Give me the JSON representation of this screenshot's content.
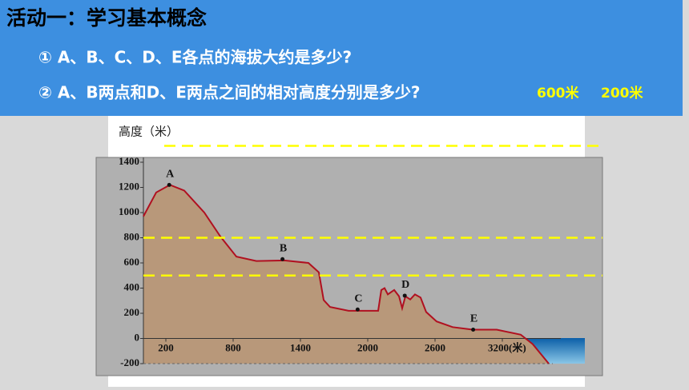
{
  "header": {
    "title": "活动一：学习基本概念",
    "questions": [
      "① A、B、C、D、E各点的海拔大约是多少?",
      "② A、B两点和D、E两点之间的相对高度分别是多少?"
    ],
    "answers": [
      "600米",
      "200米"
    ]
  },
  "chart": {
    "type": "line",
    "y_label": "高度（米）",
    "xlim": [
      0,
      3700
    ],
    "ylim": [
      -200,
      1400
    ],
    "yticks": [
      -200,
      0,
      200,
      400,
      600,
      800,
      1000,
      1200,
      1400
    ],
    "xticks": [
      200,
      800,
      1400,
      2000,
      2600,
      {
        "value": 3200,
        "label": "3200(米)"
      }
    ],
    "profile": {
      "color": "#b01020",
      "fill": "#b8987a",
      "x": [
        0,
        114,
        236,
        364,
        543,
        686,
        829,
        1007,
        1257,
        1471,
        1564,
        1607,
        1664,
        1829,
        2093,
        2121,
        2150,
        2179,
        2236,
        2279,
        2307,
        2336,
        2379,
        2421,
        2471,
        2521,
        2614,
        2757,
        2936,
        3150,
        3364,
        3471,
        3614
      ],
      "y": [
        970,
        1160,
        1220,
        1175,
        1000,
        810,
        650,
        615,
        620,
        600,
        525,
        305,
        250,
        220,
        220,
        385,
        400,
        350,
        385,
        335,
        240,
        335,
        310,
        350,
        325,
        210,
        135,
        90,
        70,
        70,
        30,
        -45,
        -200
      ]
    },
    "points": [
      {
        "label": "A",
        "x": 230,
        "y": 1220
      },
      {
        "label": "B",
        "x": 1240,
        "y": 630
      },
      {
        "label": "C",
        "x": 1910,
        "y": 230
      },
      {
        "label": "D",
        "x": 2330,
        "y": 340
      },
      {
        "label": "E",
        "x": 2940,
        "y": 70
      }
    ],
    "guide_lines": {
      "color": "#ffff00",
      "values": [
        1530,
        800,
        500
      ]
    }
  }
}
